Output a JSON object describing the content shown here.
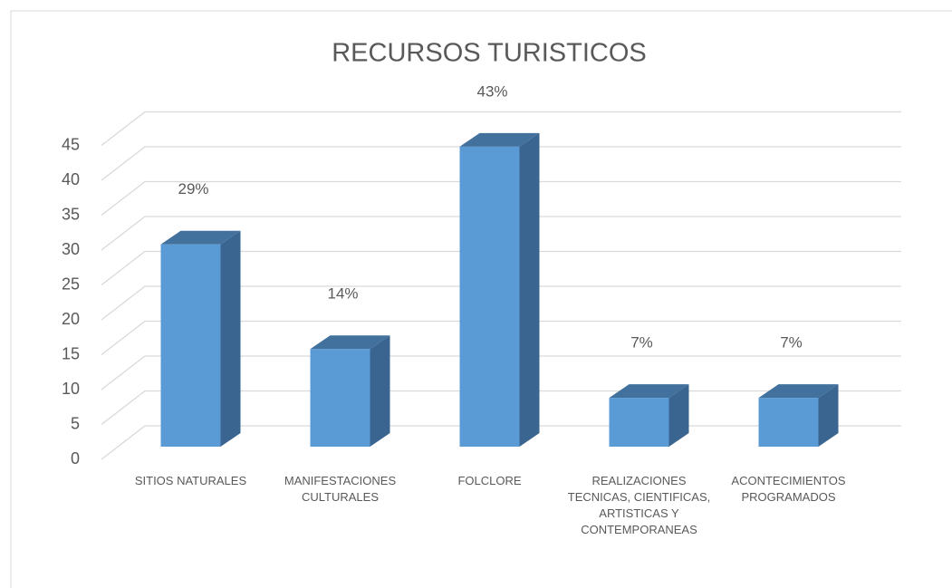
{
  "chart_data": {
    "type": "bar3d",
    "title": "RECURSOS TURISTICOS",
    "categories": [
      "SITIOS NATURALES",
      "MANIFESTACIONES CULTURALES",
      "FOLCLORE",
      "REALIZACIONES TECNICAS, CIENTIFICAS, ARTISTICAS Y CONTEMPORANEAS",
      "ACONTECIMIENTOS PROGRAMADOS"
    ],
    "values": [
      29,
      14,
      43,
      7,
      7
    ],
    "value_labels": [
      "29%",
      "14%",
      "43%",
      "7%",
      "7%"
    ],
    "color": "#5b9bd5",
    "ylim": [
      0,
      45
    ],
    "yticks": [
      0,
      5,
      10,
      15,
      20,
      25,
      30,
      35,
      40,
      45
    ],
    "grid": true
  }
}
